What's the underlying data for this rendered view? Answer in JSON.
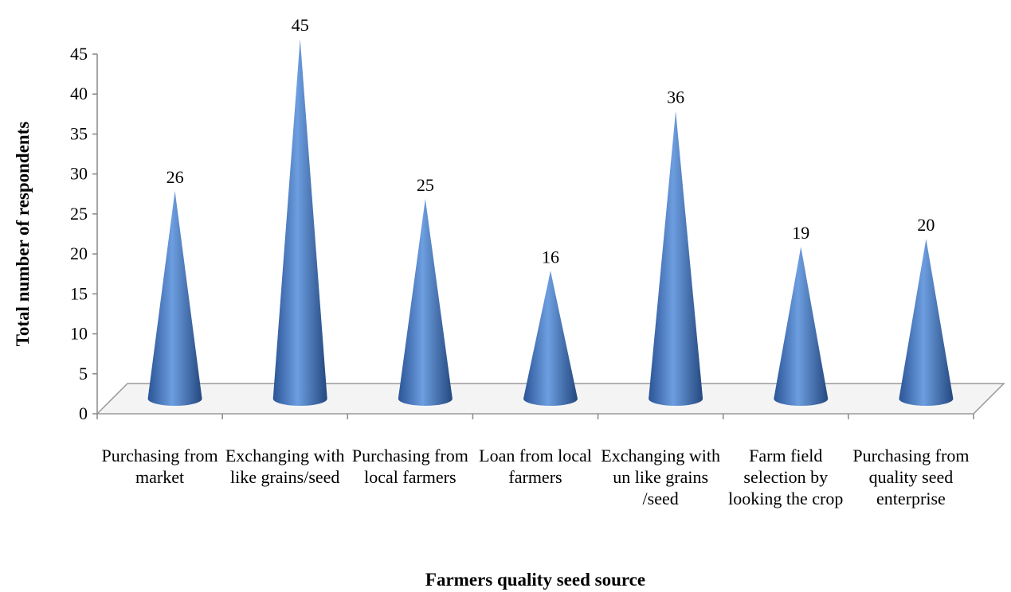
{
  "chart_data": {
    "type": "cone",
    "x_label": "Farmers quality seed source",
    "y_label": "Total number of respondents",
    "categories": [
      "Purchasing from market",
      "Exchanging with like grains/seed",
      "Purchasing from local farmers",
      "Loan from local farmers",
      "Exchanging with un like grains /seed",
      "Farm field selection by looking the crop",
      "Purchasing from quality seed enterprise"
    ],
    "values": [
      26,
      45,
      25,
      16,
      36,
      19,
      20
    ],
    "color": "#3d6fb5",
    "ylim": [
      0,
      45
    ],
    "yticks": [
      0,
      5,
      10,
      15,
      20,
      25,
      30,
      35,
      40,
      45
    ],
    "grid": false
  }
}
